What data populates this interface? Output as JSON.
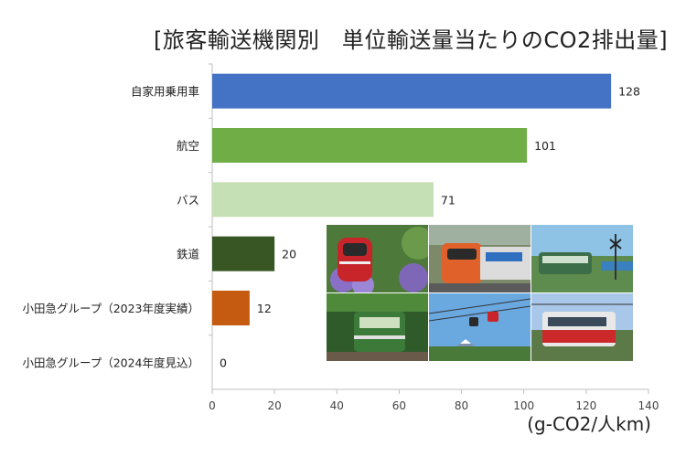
{
  "chart_data": {
    "type": "bar",
    "orientation": "horizontal",
    "title": "[旅客輸送機関別　単位輸送量当たりのCO2排出量]",
    "unit_label": "(g-CO2/人km)",
    "categories": [
      "自家用乗用車",
      "航空",
      "バス",
      "鉄道",
      "小田急グループ（2023年度実績）",
      "小田急グループ（2024年度見込）"
    ],
    "values": [
      128,
      101,
      71,
      20,
      12,
      0
    ],
    "data_labels": [
      "128",
      "101",
      "71",
      "20",
      "12",
      "0"
    ],
    "bar_colors": [
      "#4472c4",
      "#70ad47",
      "#c5e0b4",
      "#375623",
      "#c55a11",
      "#c55a11"
    ],
    "xlim": [
      0,
      140
    ],
    "xticks": [
      "0",
      "20",
      "40",
      "60",
      "80",
      "100",
      "120",
      "140"
    ],
    "grid": false,
    "legend": "none"
  },
  "photos": [
    "romance-car-hydrangea",
    "orange-express",
    "commuter-train",
    "seaside-tram",
    "green-mountain-train",
    "ropeway-fuji",
    "red-mountain-train"
  ]
}
